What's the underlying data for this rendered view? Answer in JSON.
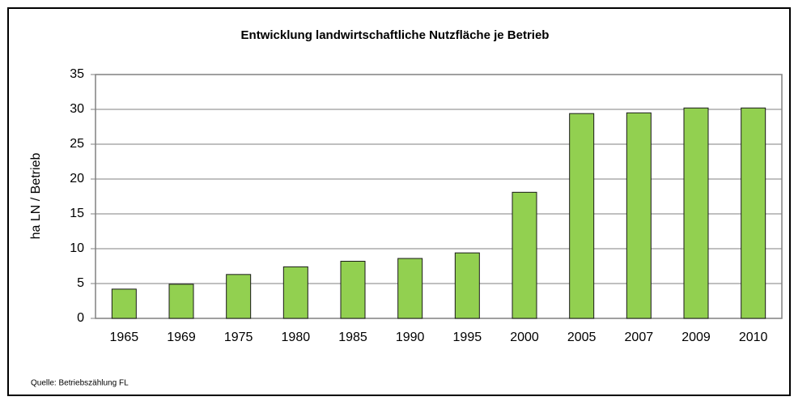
{
  "chart_data": {
    "type": "bar",
    "title": "Entwicklung landwirtschaftliche Nutzfläche je Betrieb",
    "y_label": "ha LN / Betrieb",
    "source": "Quelle: Betriebszählung FL",
    "categories": [
      "1965",
      "1969",
      "1975",
      "1980",
      "1985",
      "1990",
      "1995",
      "2000",
      "2005",
      "2007",
      "2009",
      "2010"
    ],
    "values": [
      4.2,
      4.9,
      6.3,
      7.4,
      8.2,
      8.6,
      9.4,
      18.1,
      29.4,
      29.5,
      30.2,
      30.2
    ],
    "color": "#92d050",
    "ylim": [
      0,
      35
    ],
    "yticks": [
      0,
      5,
      10,
      15,
      20,
      25,
      30,
      35
    ],
    "grid": true
  }
}
